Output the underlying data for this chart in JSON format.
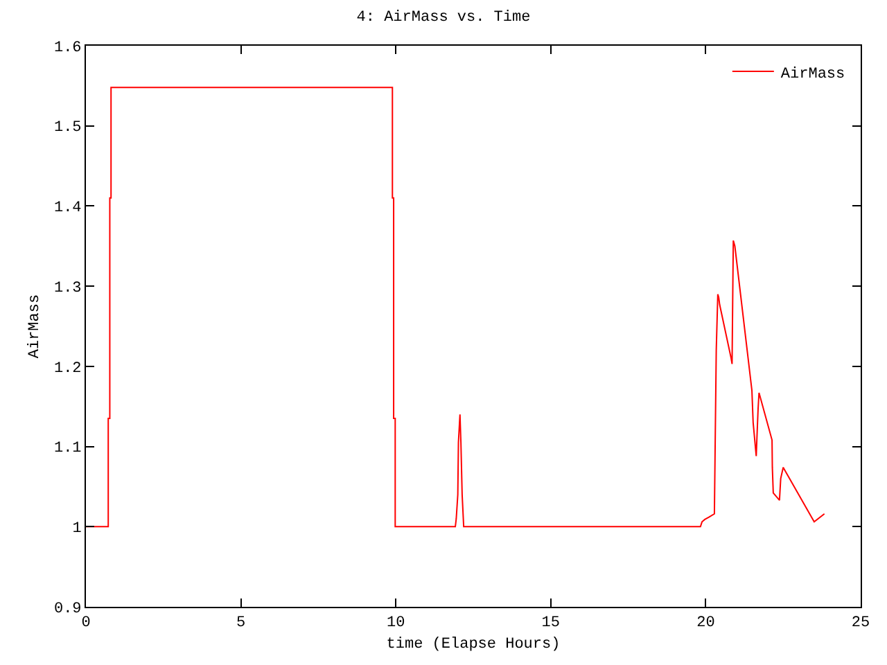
{
  "chart_data": {
    "type": "line",
    "title": "4: AirMass vs. Time",
    "xlabel": "time (Elapse Hours)",
    "ylabel": "AirMass",
    "xlim": [
      0,
      25
    ],
    "xticks": [
      0,
      5,
      10,
      15,
      20,
      25
    ],
    "ylim": [
      0.9,
      1.6
    ],
    "yticks": [
      0.9,
      1,
      1.1,
      1.2,
      1.3,
      1.4,
      1.5,
      1.6
    ],
    "legend": "top right",
    "marker": "none",
    "line_style": "solid",
    "series": [
      {
        "name": "AirMass",
        "color": "#ff0000",
        "x": [
          0,
          0.72,
          0.72,
          0.77,
          0.77,
          0.81,
          0.81,
          9.89,
          9.89,
          9.93,
          9.93,
          9.98,
          9.98,
          11.92,
          11.95,
          12.0,
          12.02,
          12.07,
          12.1,
          12.14,
          12.19,
          19.83,
          19.88,
          19.97,
          20.11,
          20.28,
          20.3,
          20.34,
          20.39,
          20.42,
          20.45,
          20.82,
          20.85,
          20.87,
          20.89,
          20.94,
          21.49,
          21.53,
          21.63,
          21.65,
          21.69,
          21.72,
          22.14,
          22.15,
          22.18,
          22.38,
          22.42,
          22.5,
          23.5,
          23.83
        ],
        "values": [
          1,
          1,
          1.135,
          1.135,
          1.41,
          1.41,
          1.548,
          1.548,
          1.41,
          1.41,
          1.135,
          1.135,
          1,
          1,
          1.01,
          1.04,
          1.105,
          1.14,
          1.105,
          1.04,
          1,
          1,
          1.006,
          1.009,
          1.012,
          1.016,
          1.085,
          1.22,
          1.29,
          1.286,
          1.277,
          1.21,
          1.203,
          1.28,
          1.357,
          1.35,
          1.17,
          1.13,
          1.088,
          1.108,
          1.147,
          1.167,
          1.108,
          1.074,
          1.042,
          1.033,
          1.06,
          1.074,
          1.006,
          1.016
        ]
      }
    ]
  }
}
